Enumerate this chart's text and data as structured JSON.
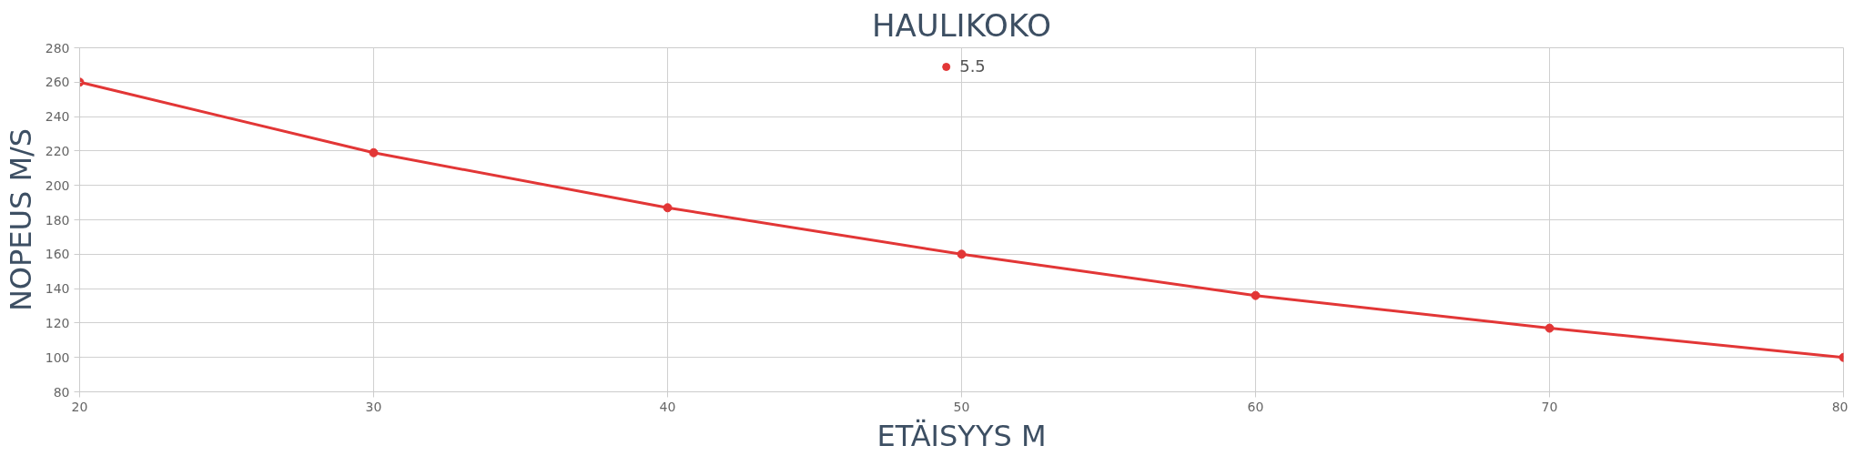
{
  "chart_data": {
    "type": "line",
    "title": "HAULIKOKO",
    "xlabel": "ETÄISYYS M",
    "ylabel": "NOPEUS M/S",
    "x": [
      20,
      30,
      40,
      50,
      60,
      70,
      80
    ],
    "series": [
      {
        "name": "5.5",
        "color": "#e23636",
        "values": [
          260,
          219,
          187,
          160,
          136,
          117,
          100
        ]
      }
    ],
    "xlim": [
      20,
      80
    ],
    "xticks": [
      20,
      30,
      40,
      50,
      60,
      70,
      80
    ],
    "ylim": [
      80,
      280
    ],
    "yticks": [
      80,
      100,
      120,
      140,
      160,
      180,
      200,
      220,
      240,
      260,
      280
    ],
    "grid": true,
    "legend": "top",
    "marker": "circle",
    "line_style": "solid"
  }
}
